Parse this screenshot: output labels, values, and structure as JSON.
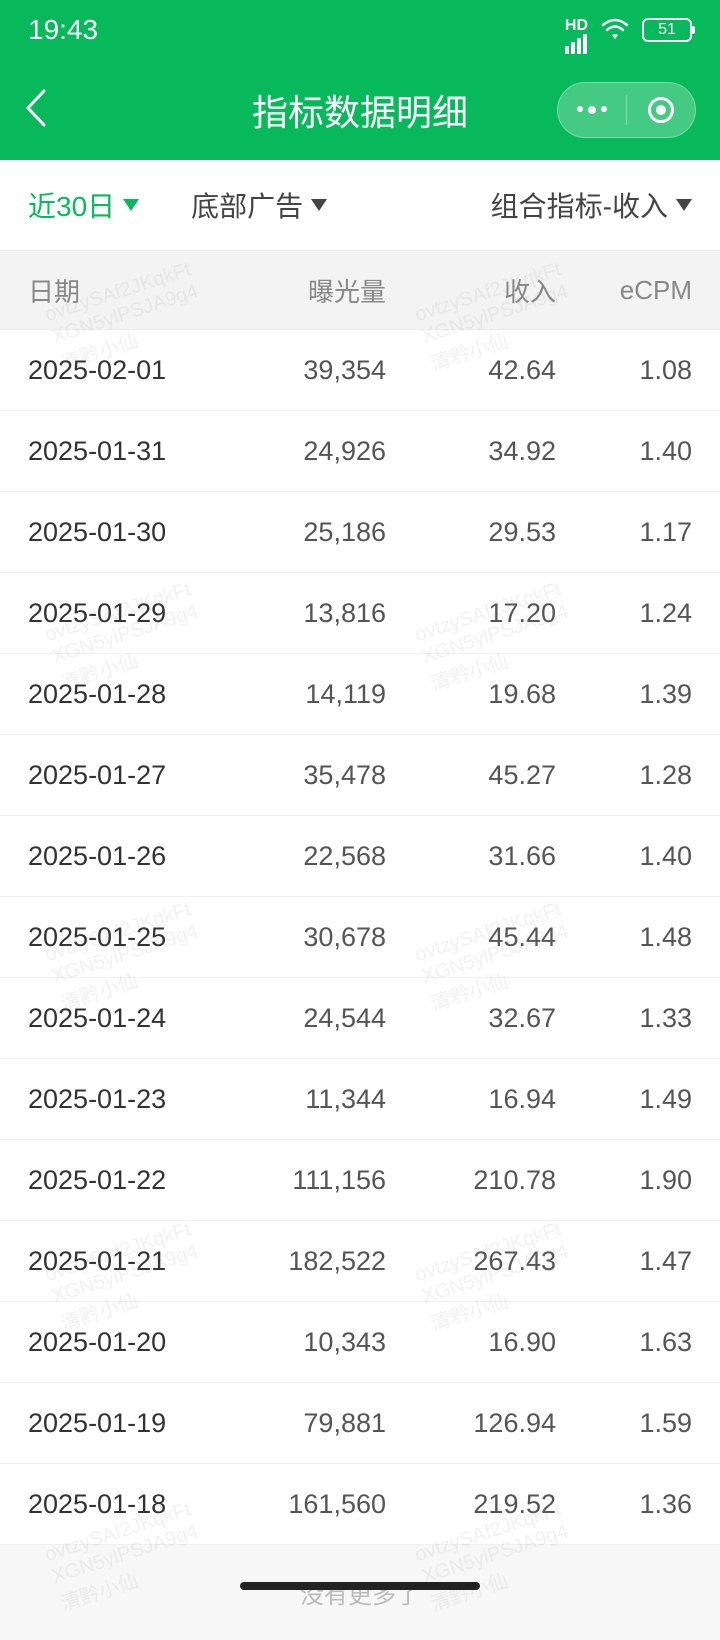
{
  "status": {
    "time": "19:43",
    "battery": "51",
    "hd_label": "HD"
  },
  "header": {
    "title": "指标数据明细"
  },
  "filters": {
    "date_range": "近30日",
    "ad_position": "底部广告",
    "metric_combo": "组合指标-收入"
  },
  "table": {
    "columns": {
      "date": "日期",
      "exposure": "曝光量",
      "revenue": "收入",
      "ecpm": "eCPM"
    },
    "rows": [
      {
        "date": "2025-02-01",
        "exposure": "39,354",
        "revenue": "42.64",
        "ecpm": "1.08"
      },
      {
        "date": "2025-01-31",
        "exposure": "24,926",
        "revenue": "34.92",
        "ecpm": "1.40"
      },
      {
        "date": "2025-01-30",
        "exposure": "25,186",
        "revenue": "29.53",
        "ecpm": "1.17"
      },
      {
        "date": "2025-01-29",
        "exposure": "13,816",
        "revenue": "17.20",
        "ecpm": "1.24"
      },
      {
        "date": "2025-01-28",
        "exposure": "14,119",
        "revenue": "19.68",
        "ecpm": "1.39"
      },
      {
        "date": "2025-01-27",
        "exposure": "35,478",
        "revenue": "45.27",
        "ecpm": "1.28"
      },
      {
        "date": "2025-01-26",
        "exposure": "22,568",
        "revenue": "31.66",
        "ecpm": "1.40"
      },
      {
        "date": "2025-01-25",
        "exposure": "30,678",
        "revenue": "45.44",
        "ecpm": "1.48"
      },
      {
        "date": "2025-01-24",
        "exposure": "24,544",
        "revenue": "32.67",
        "ecpm": "1.33"
      },
      {
        "date": "2025-01-23",
        "exposure": "11,344",
        "revenue": "16.94",
        "ecpm": "1.49"
      },
      {
        "date": "2025-01-22",
        "exposure": "111,156",
        "revenue": "210.78",
        "ecpm": "1.90"
      },
      {
        "date": "2025-01-21",
        "exposure": "182,522",
        "revenue": "267.43",
        "ecpm": "1.47"
      },
      {
        "date": "2025-01-20",
        "exposure": "10,343",
        "revenue": "16.90",
        "ecpm": "1.63"
      },
      {
        "date": "2025-01-19",
        "exposure": "79,881",
        "revenue": "126.94",
        "ecpm": "1.59"
      },
      {
        "date": "2025-01-18",
        "exposure": "161,560",
        "revenue": "219.52",
        "ecpm": "1.36"
      }
    ],
    "no_more": "没有更多了"
  },
  "watermark": {
    "text1": "ovtzySAf2JKqkFt",
    "text2": "XGN5ylPSJA9g4",
    "text3": "清黔小仙"
  },
  "colors": {
    "primary": "#07b95b",
    "bg": "#f7f7f7",
    "row_border": "#f0f0f0",
    "header_text": "#888888",
    "body_text": "#333333"
  }
}
